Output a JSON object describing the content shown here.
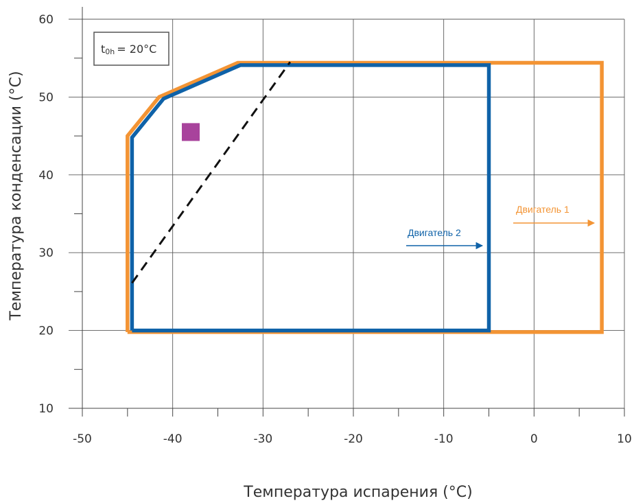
{
  "chart_data": {
    "type": "line",
    "xlabel": "Температура испарения (°C)",
    "ylabel": "Температура конденсации (°C)",
    "xlim": [
      -50,
      10
    ],
    "ylim": [
      10,
      60
    ],
    "x_ticks": [
      "-50",
      "-40",
      "-30",
      "-20",
      "-10",
      "0",
      "10"
    ],
    "x_tick_values": [
      -50,
      -40,
      -30,
      -20,
      -10,
      0,
      10
    ],
    "y_ticks": [
      "10",
      "20",
      "30",
      "40",
      "50",
      "60"
    ],
    "y_tick_values": [
      10,
      20,
      30,
      40,
      50,
      60
    ],
    "grid": true,
    "series": [
      {
        "name": "Двигатель 1",
        "color": "#f39434",
        "points": [
          [
            -45,
            19.8
          ],
          [
            -45,
            45
          ],
          [
            -41.5,
            50
          ],
          [
            -32.8,
            54.4
          ],
          [
            7.5,
            54.4
          ],
          [
            7.5,
            19.8
          ],
          [
            -45,
            19.8
          ]
        ]
      },
      {
        "name": "Двигатель 2",
        "color": "#0f62a8",
        "points": [
          [
            -44.5,
            20
          ],
          [
            -44.5,
            44.8
          ],
          [
            -41,
            49.8
          ],
          [
            -32.5,
            54.1
          ],
          [
            -5,
            54.1
          ],
          [
            -5,
            20
          ],
          [
            -44.5,
            20
          ]
        ]
      }
    ],
    "dashed_line": {
      "color": "#111111",
      "points": [
        [
          -44.5,
          26.1
        ],
        [
          -27,
          54.5
        ]
      ]
    },
    "marker": {
      "shape": "square",
      "color": "#a8439c",
      "x": -38,
      "y": 45.5
    },
    "annotation": {
      "text_main": "t",
      "text_sub": "0h",
      "text_rest": "= 20°C"
    },
    "series_labels": [
      {
        "text": "Двигатель 2",
        "color": "#0f62a8"
      },
      {
        "text": "Двигатель 1",
        "color": "#f39434"
      }
    ]
  }
}
